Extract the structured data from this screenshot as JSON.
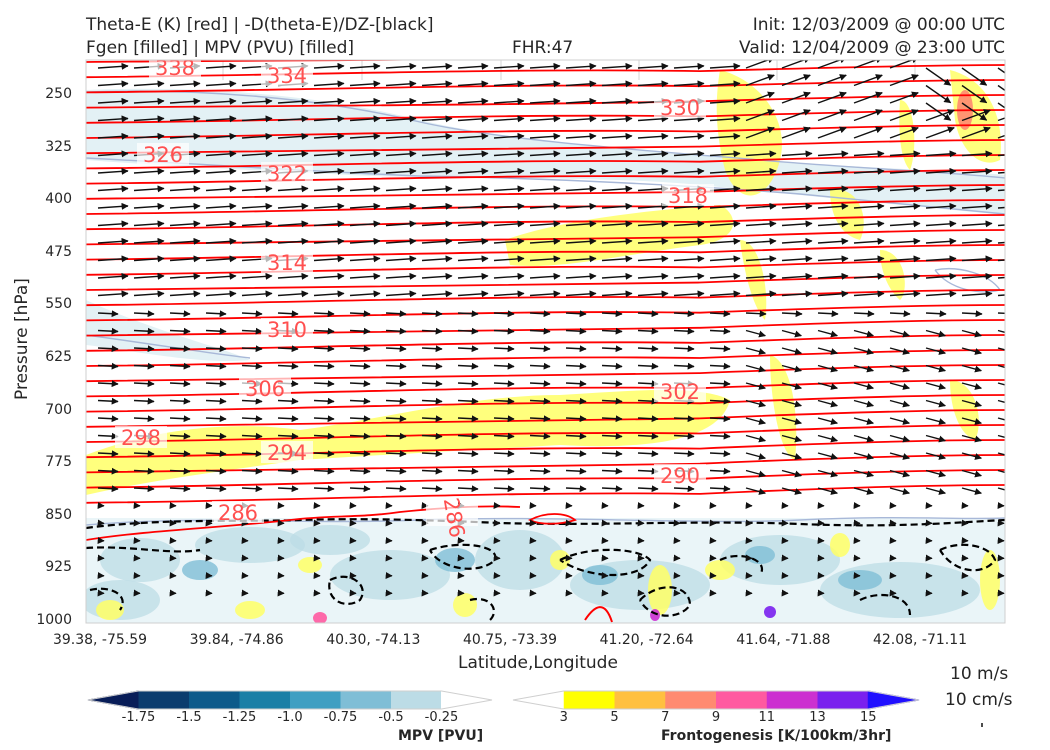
{
  "header": {
    "title_line1": "Theta-E (K) [red] | -D(theta-E)/DZ-[black]",
    "title_line2": "Fgen [filled] | MPV (PVU) [filled]",
    "fhr": "FHR:47",
    "init": "Init: 12/03/2009 @ 00:00 UTC",
    "valid": "Valid: 12/04/2009 @ 23:00 UTC"
  },
  "chart_data": {
    "type": "cross-section",
    "ylabel": "Pressure [hPa]",
    "xlabel": "Latitude,Longitude",
    "y_ticks": [
      "250",
      "325",
      "400",
      "475",
      "550",
      "625",
      "700",
      "775",
      "850",
      "925",
      "1000"
    ],
    "x_ticks": [
      "39.38, -75.59",
      "39.84, -74.86",
      "40.30, -74.13",
      "40.75, -73.39",
      "41.20, -72.64",
      "41.64, -71.88",
      "42.08, -71.11"
    ],
    "ylim": [
      1000,
      190
    ],
    "theta_e_contours": [
      {
        "value": "338"
      },
      {
        "value": "334"
      },
      {
        "value": "330"
      },
      {
        "value": "326"
      },
      {
        "value": "322"
      },
      {
        "value": "318"
      },
      {
        "value": "314"
      },
      {
        "value": "310"
      },
      {
        "value": "306"
      },
      {
        "value": "302"
      },
      {
        "value": "298"
      },
      {
        "value": "294"
      },
      {
        "value": "290"
      },
      {
        "value": "286"
      },
      {
        "value": "286"
      }
    ],
    "reference_vectors": [
      "10 m/s",
      "10 cm/s"
    ],
    "colors": {
      "theta_e": "#ff0000",
      "stability": "#000000",
      "fgen_yellow": "#ffff66",
      "mpv_blue": "#bcdce6"
    }
  },
  "colorbars": {
    "mpv": {
      "label": "MPV [PVU]",
      "ticks": [
        "-1.75",
        "-1.5",
        "-1.25",
        "-1.0",
        "-0.75",
        "-0.5",
        "-0.25"
      ],
      "colors": [
        "#081d58",
        "#0b3c6e",
        "#0d5a8a",
        "#1a7fa6",
        "#3f9fc2",
        "#7fbed6",
        "#bcdce6",
        "#ffffff"
      ]
    },
    "fgen": {
      "label": "Frontogenesis [K/100km/3hr]",
      "ticks": [
        "3",
        "5",
        "7",
        "9",
        "11",
        "13",
        "15"
      ],
      "colors": [
        "#ffffff",
        "#ffff00",
        "#ffc040",
        "#ff8a70",
        "#ff5aa0",
        "#cc30d0",
        "#7a20ee",
        "#2010ff"
      ]
    }
  }
}
